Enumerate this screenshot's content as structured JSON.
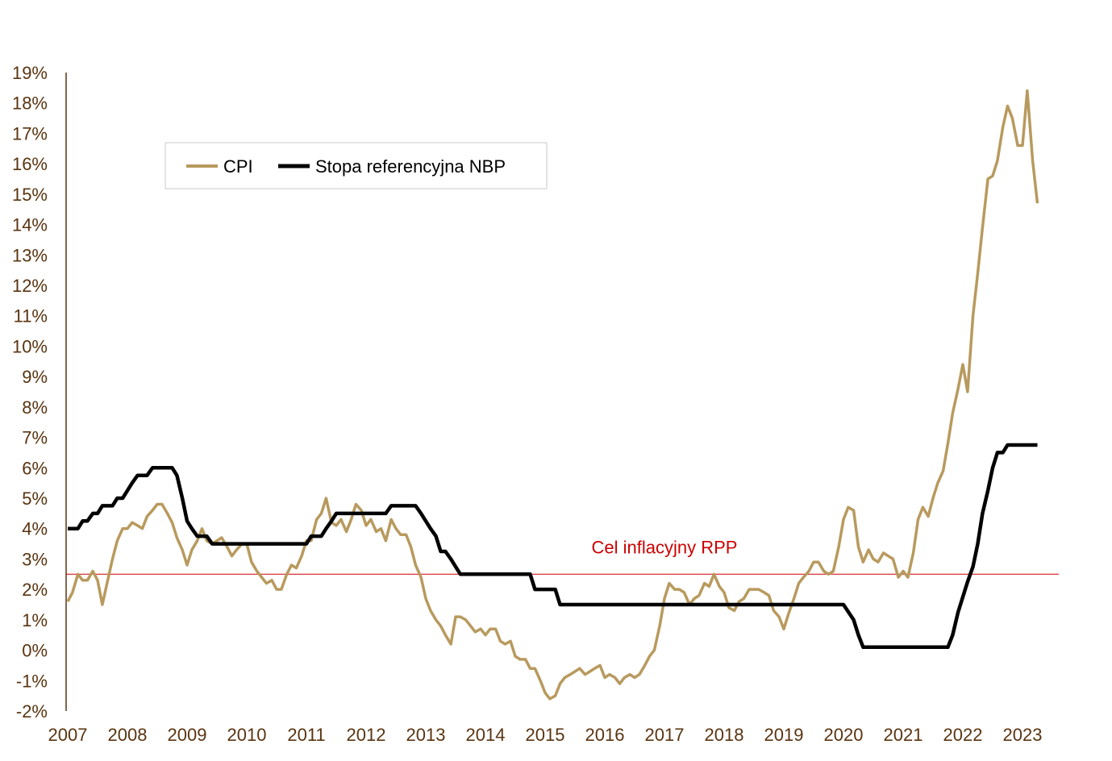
{
  "chart_data": {
    "type": "line",
    "title": "",
    "xlabel": "",
    "ylabel": "",
    "x_ticks": [
      "2007",
      "2008",
      "2009",
      "2010",
      "2011",
      "2012",
      "2013",
      "2014",
      "2015",
      "2016",
      "2017",
      "2018",
      "2019",
      "2020",
      "2021",
      "2022",
      "2023"
    ],
    "y_ticks": [
      "19%",
      "18%",
      "17%",
      "16%",
      "15%",
      "14%",
      "13%",
      "12%",
      "11%",
      "10%",
      "9%",
      "8%",
      "7%",
      "6%",
      "5%",
      "4%",
      "3%",
      "2%",
      "1%",
      "0%",
      "-1%",
      "-2%"
    ],
    "xlim": [
      2007.0,
      2023.5
    ],
    "ylim": [
      -2,
      19
    ],
    "grid": false,
    "legend_position": "top-left",
    "colors": {
      "cpi": "#b89a5e",
      "rate": "#000000",
      "target": "#cc0000",
      "axis": "#5a3410",
      "legend_border": "#c8c8c8"
    },
    "series": [
      {
        "name": "CPI",
        "points": [
          [
            2007.0,
            1.6
          ],
          [
            2007.08,
            1.9
          ],
          [
            2007.17,
            2.5
          ],
          [
            2007.25,
            2.3
          ],
          [
            2007.33,
            2.3
          ],
          [
            2007.42,
            2.6
          ],
          [
            2007.5,
            2.3
          ],
          [
            2007.58,
            1.5
          ],
          [
            2007.67,
            2.3
          ],
          [
            2007.75,
            3.0
          ],
          [
            2007.83,
            3.6
          ],
          [
            2007.92,
            4.0
          ],
          [
            2008.0,
            4.0
          ],
          [
            2008.08,
            4.2
          ],
          [
            2008.17,
            4.1
          ],
          [
            2008.25,
            4.0
          ],
          [
            2008.33,
            4.4
          ],
          [
            2008.42,
            4.6
          ],
          [
            2008.5,
            4.8
          ],
          [
            2008.58,
            4.8
          ],
          [
            2008.67,
            4.5
          ],
          [
            2008.75,
            4.2
          ],
          [
            2008.83,
            3.7
          ],
          [
            2008.92,
            3.3
          ],
          [
            2009.0,
            2.8
          ],
          [
            2009.08,
            3.3
          ],
          [
            2009.17,
            3.6
          ],
          [
            2009.25,
            4.0
          ],
          [
            2009.33,
            3.6
          ],
          [
            2009.42,
            3.5
          ],
          [
            2009.5,
            3.6
          ],
          [
            2009.58,
            3.7
          ],
          [
            2009.67,
            3.4
          ],
          [
            2009.75,
            3.1
          ],
          [
            2009.83,
            3.3
          ],
          [
            2009.92,
            3.5
          ],
          [
            2010.0,
            3.5
          ],
          [
            2010.08,
            2.9
          ],
          [
            2010.17,
            2.6
          ],
          [
            2010.25,
            2.4
          ],
          [
            2010.33,
            2.2
          ],
          [
            2010.42,
            2.3
          ],
          [
            2010.5,
            2.0
          ],
          [
            2010.58,
            2.0
          ],
          [
            2010.67,
            2.5
          ],
          [
            2010.75,
            2.8
          ],
          [
            2010.83,
            2.7
          ],
          [
            2010.92,
            3.1
          ],
          [
            2011.0,
            3.6
          ],
          [
            2011.08,
            3.6
          ],
          [
            2011.17,
            4.3
          ],
          [
            2011.25,
            4.5
          ],
          [
            2011.33,
            5.0
          ],
          [
            2011.42,
            4.2
          ],
          [
            2011.5,
            4.1
          ],
          [
            2011.58,
            4.3
          ],
          [
            2011.67,
            3.9
          ],
          [
            2011.75,
            4.3
          ],
          [
            2011.83,
            4.8
          ],
          [
            2011.92,
            4.6
          ],
          [
            2012.0,
            4.1
          ],
          [
            2012.08,
            4.3
          ],
          [
            2012.17,
            3.9
          ],
          [
            2012.25,
            4.0
          ],
          [
            2012.33,
            3.6
          ],
          [
            2012.42,
            4.3
          ],
          [
            2012.5,
            4.0
          ],
          [
            2012.58,
            3.8
          ],
          [
            2012.67,
            3.8
          ],
          [
            2012.75,
            3.4
          ],
          [
            2012.83,
            2.8
          ],
          [
            2012.92,
            2.4
          ],
          [
            2013.0,
            1.7
          ],
          [
            2013.08,
            1.3
          ],
          [
            2013.17,
            1.0
          ],
          [
            2013.25,
            0.8
          ],
          [
            2013.33,
            0.5
          ],
          [
            2013.42,
            0.2
          ],
          [
            2013.5,
            1.1
          ],
          [
            2013.58,
            1.1
          ],
          [
            2013.67,
            1.0
          ],
          [
            2013.75,
            0.8
          ],
          [
            2013.83,
            0.6
          ],
          [
            2013.92,
            0.7
          ],
          [
            2014.0,
            0.5
          ],
          [
            2014.08,
            0.7
          ],
          [
            2014.17,
            0.7
          ],
          [
            2014.25,
            0.3
          ],
          [
            2014.33,
            0.2
          ],
          [
            2014.42,
            0.3
          ],
          [
            2014.5,
            -0.2
          ],
          [
            2014.58,
            -0.3
          ],
          [
            2014.67,
            -0.3
          ],
          [
            2014.75,
            -0.6
          ],
          [
            2014.83,
            -0.6
          ],
          [
            2014.92,
            -1.0
          ],
          [
            2015.0,
            -1.4
          ],
          [
            2015.08,
            -1.6
          ],
          [
            2015.17,
            -1.5
          ],
          [
            2015.25,
            -1.1
          ],
          [
            2015.33,
            -0.9
          ],
          [
            2015.42,
            -0.8
          ],
          [
            2015.5,
            -0.7
          ],
          [
            2015.58,
            -0.6
          ],
          [
            2015.67,
            -0.8
          ],
          [
            2015.75,
            -0.7
          ],
          [
            2015.83,
            -0.6
          ],
          [
            2015.92,
            -0.5
          ],
          [
            2016.0,
            -0.9
          ],
          [
            2016.08,
            -0.8
          ],
          [
            2016.17,
            -0.9
          ],
          [
            2016.25,
            -1.1
          ],
          [
            2016.33,
            -0.9
          ],
          [
            2016.42,
            -0.8
          ],
          [
            2016.5,
            -0.9
          ],
          [
            2016.58,
            -0.8
          ],
          [
            2016.67,
            -0.5
          ],
          [
            2016.75,
            -0.2
          ],
          [
            2016.83,
            0.0
          ],
          [
            2016.92,
            0.8
          ],
          [
            2017.0,
            1.7
          ],
          [
            2017.08,
            2.2
          ],
          [
            2017.17,
            2.0
          ],
          [
            2017.25,
            2.0
          ],
          [
            2017.33,
            1.9
          ],
          [
            2017.42,
            1.5
          ],
          [
            2017.5,
            1.7
          ],
          [
            2017.58,
            1.8
          ],
          [
            2017.67,
            2.2
          ],
          [
            2017.75,
            2.1
          ],
          [
            2017.83,
            2.5
          ],
          [
            2017.92,
            2.1
          ],
          [
            2018.0,
            1.9
          ],
          [
            2018.08,
            1.4
          ],
          [
            2018.17,
            1.3
          ],
          [
            2018.25,
            1.6
          ],
          [
            2018.33,
            1.7
          ],
          [
            2018.42,
            2.0
          ],
          [
            2018.5,
            2.0
          ],
          [
            2018.58,
            2.0
          ],
          [
            2018.67,
            1.9
          ],
          [
            2018.75,
            1.8
          ],
          [
            2018.83,
            1.3
          ],
          [
            2018.92,
            1.1
          ],
          [
            2019.0,
            0.7
          ],
          [
            2019.08,
            1.2
          ],
          [
            2019.17,
            1.7
          ],
          [
            2019.25,
            2.2
          ],
          [
            2019.33,
            2.4
          ],
          [
            2019.42,
            2.6
          ],
          [
            2019.5,
            2.9
          ],
          [
            2019.58,
            2.9
          ],
          [
            2019.67,
            2.6
          ],
          [
            2019.75,
            2.5
          ],
          [
            2019.83,
            2.6
          ],
          [
            2019.92,
            3.4
          ],
          [
            2020.0,
            4.3
          ],
          [
            2020.08,
            4.7
          ],
          [
            2020.17,
            4.6
          ],
          [
            2020.25,
            3.4
          ],
          [
            2020.33,
            2.9
          ],
          [
            2020.42,
            3.3
          ],
          [
            2020.5,
            3.0
          ],
          [
            2020.58,
            2.9
          ],
          [
            2020.67,
            3.2
          ],
          [
            2020.75,
            3.1
          ],
          [
            2020.83,
            3.0
          ],
          [
            2020.92,
            2.4
          ],
          [
            2021.0,
            2.6
          ],
          [
            2021.08,
            2.4
          ],
          [
            2021.17,
            3.2
          ],
          [
            2021.25,
            4.3
          ],
          [
            2021.33,
            4.7
          ],
          [
            2021.42,
            4.4
          ],
          [
            2021.5,
            5.0
          ],
          [
            2021.58,
            5.5
          ],
          [
            2021.67,
            5.9
          ],
          [
            2021.75,
            6.8
          ],
          [
            2021.83,
            7.8
          ],
          [
            2021.92,
            8.6
          ],
          [
            2022.0,
            9.4
          ],
          [
            2022.08,
            8.5
          ],
          [
            2022.17,
            11.0
          ],
          [
            2022.25,
            12.4
          ],
          [
            2022.33,
            13.9
          ],
          [
            2022.42,
            15.5
          ],
          [
            2022.5,
            15.6
          ],
          [
            2022.58,
            16.1
          ],
          [
            2022.67,
            17.2
          ],
          [
            2022.75,
            17.9
          ],
          [
            2022.83,
            17.5
          ],
          [
            2022.92,
            16.6
          ],
          [
            2023.0,
            16.6
          ],
          [
            2023.08,
            18.4
          ],
          [
            2023.17,
            16.1
          ],
          [
            2023.25,
            14.7
          ]
        ]
      },
      {
        "name": "Stopa referencyjna NBP",
        "points": [
          [
            2007.0,
            4.0
          ],
          [
            2007.17,
            4.0
          ],
          [
            2007.25,
            4.25
          ],
          [
            2007.33,
            4.25
          ],
          [
            2007.42,
            4.5
          ],
          [
            2007.5,
            4.5
          ],
          [
            2007.58,
            4.75
          ],
          [
            2007.75,
            4.75
          ],
          [
            2007.83,
            5.0
          ],
          [
            2007.92,
            5.0
          ],
          [
            2008.0,
            5.25
          ],
          [
            2008.08,
            5.5
          ],
          [
            2008.17,
            5.75
          ],
          [
            2008.33,
            5.75
          ],
          [
            2008.42,
            6.0
          ],
          [
            2008.75,
            6.0
          ],
          [
            2008.83,
            5.75
          ],
          [
            2008.92,
            5.0
          ],
          [
            2009.0,
            4.25
          ],
          [
            2009.08,
            4.0
          ],
          [
            2009.17,
            3.75
          ],
          [
            2009.33,
            3.75
          ],
          [
            2009.42,
            3.5
          ],
          [
            2011.0,
            3.5
          ],
          [
            2011.08,
            3.75
          ],
          [
            2011.25,
            3.75
          ],
          [
            2011.33,
            4.0
          ],
          [
            2011.42,
            4.25
          ],
          [
            2011.5,
            4.5
          ],
          [
            2012.33,
            4.5
          ],
          [
            2012.42,
            4.75
          ],
          [
            2012.83,
            4.75
          ],
          [
            2012.92,
            4.5
          ],
          [
            2013.0,
            4.25
          ],
          [
            2013.08,
            4.0
          ],
          [
            2013.17,
            3.75
          ],
          [
            2013.25,
            3.25
          ],
          [
            2013.33,
            3.25
          ],
          [
            2013.42,
            3.0
          ],
          [
            2013.5,
            2.75
          ],
          [
            2013.58,
            2.5
          ],
          [
            2014.75,
            2.5
          ],
          [
            2014.83,
            2.0
          ],
          [
            2015.17,
            2.0
          ],
          [
            2015.25,
            1.5
          ],
          [
            2020.0,
            1.5
          ],
          [
            2020.17,
            1.0
          ],
          [
            2020.25,
            0.5
          ],
          [
            2020.33,
            0.1
          ],
          [
            2021.75,
            0.1
          ],
          [
            2021.83,
            0.5
          ],
          [
            2021.92,
            1.25
          ],
          [
            2022.0,
            1.75
          ],
          [
            2022.08,
            2.25
          ],
          [
            2022.17,
            2.75
          ],
          [
            2022.25,
            3.5
          ],
          [
            2022.33,
            4.5
          ],
          [
            2022.42,
            5.25
          ],
          [
            2022.5,
            6.0
          ],
          [
            2022.58,
            6.5
          ],
          [
            2022.67,
            6.5
          ],
          [
            2022.75,
            6.75
          ],
          [
            2023.25,
            6.75
          ]
        ]
      }
    ],
    "target": {
      "value": 2.5,
      "label": "Cel inflacyjny RPP"
    }
  }
}
